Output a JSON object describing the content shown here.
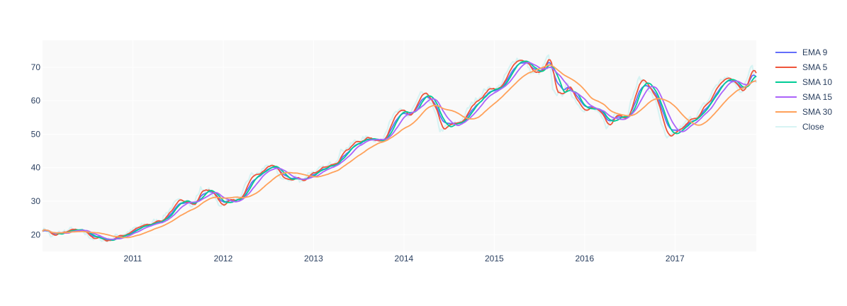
{
  "chart_data": {
    "type": "line",
    "title": "",
    "xlabel": "",
    "ylabel": "",
    "x_range": [
      2010.0,
      2017.9
    ],
    "ylim": [
      15,
      78
    ],
    "x_ticks": [
      2011,
      2012,
      2013,
      2014,
      2015,
      2016,
      2017
    ],
    "x_tick_labels": [
      "2011",
      "2012",
      "2013",
      "2014",
      "2015",
      "2016",
      "2017"
    ],
    "y_ticks": [
      20,
      30,
      40,
      50,
      60,
      70
    ],
    "y_tick_labels": [
      "20",
      "30",
      "40",
      "50",
      "60",
      "70"
    ],
    "grid": true,
    "plot_background": "#f9f9f9",
    "legend_position": "top-right",
    "anchors": {
      "x": [
        2010.0,
        2010.05,
        2010.1,
        2010.15,
        2010.3,
        2010.45,
        2010.6,
        2010.7,
        2010.9,
        2011.0,
        2011.2,
        2011.3,
        2011.45,
        2011.55,
        2011.6,
        2011.65,
        2011.75,
        2011.85,
        2011.95,
        2012.05,
        2012.2,
        2012.3,
        2012.4,
        2012.5,
        2012.6,
        2012.7,
        2012.8,
        2012.85,
        2012.95,
        2013.1,
        2013.2,
        2013.3,
        2013.45,
        2013.6,
        2013.7,
        2013.75,
        2013.85,
        2013.95,
        2014.05,
        2014.2,
        2014.3,
        2014.4,
        2014.5,
        2014.6,
        2014.7,
        2014.8,
        2014.9,
        2015.05,
        2015.15,
        2015.25,
        2015.35,
        2015.4,
        2015.5,
        2015.6,
        2015.65,
        2015.75,
        2015.8,
        2015.95,
        2016.1,
        2016.25,
        2016.35,
        2016.45,
        2016.6,
        2016.7,
        2016.8,
        2016.9,
        2016.95,
        2017.05,
        2017.2,
        2017.35,
        2017.45,
        2017.55,
        2017.65,
        2017.75,
        2017.8,
        2017.85,
        2017.9
      ],
      "y": [
        21.8,
        21.5,
        19.2,
        19.8,
        21.5,
        20.2,
        18.8,
        18.3,
        20.5,
        21.3,
        23.5,
        24.5,
        29.0,
        29.5,
        31.8,
        28.0,
        33.8,
        33.0,
        28.8,
        30.5,
        30.8,
        37.5,
        38.2,
        41.2,
        38.0,
        35.8,
        37.5,
        35.5,
        38.8,
        39.2,
        41.0,
        45.2,
        47.5,
        49.0,
        48.8,
        47.2,
        55.5,
        56.5,
        55.2,
        61.8,
        59.5,
        51.0,
        52.5,
        53.0,
        57.0,
        60.5,
        63.5,
        64.0,
        68.5,
        73.0,
        71.5,
        68.5,
        68.0,
        73.0,
        62.5,
        62.0,
        64.5,
        58.5,
        57.5,
        52.0,
        57.0,
        55.0,
        66.5,
        64.5,
        58.5,
        48.5,
        48.5,
        51.5,
        55.0,
        59.0,
        64.5,
        67.0,
        65.0,
        63.0,
        66.5,
        72.0,
        66.0
      ]
    },
    "series": [
      {
        "name": "EMA 9",
        "color": "#636efa",
        "window": 9,
        "kind": "ema"
      },
      {
        "name": "SMA 5",
        "color": "#EF553B",
        "window": 5,
        "kind": "sma"
      },
      {
        "name": "SMA 10",
        "color": "#00cc96",
        "window": 10,
        "kind": "sma"
      },
      {
        "name": "SMA 15",
        "color": "#ab63fa",
        "window": 15,
        "kind": "sma"
      },
      {
        "name": "SMA 30",
        "color": "#FFA15A",
        "window": 30,
        "kind": "sma"
      },
      {
        "name": "Close",
        "color": "#d7f3f3",
        "window": 1,
        "kind": "close"
      }
    ]
  }
}
